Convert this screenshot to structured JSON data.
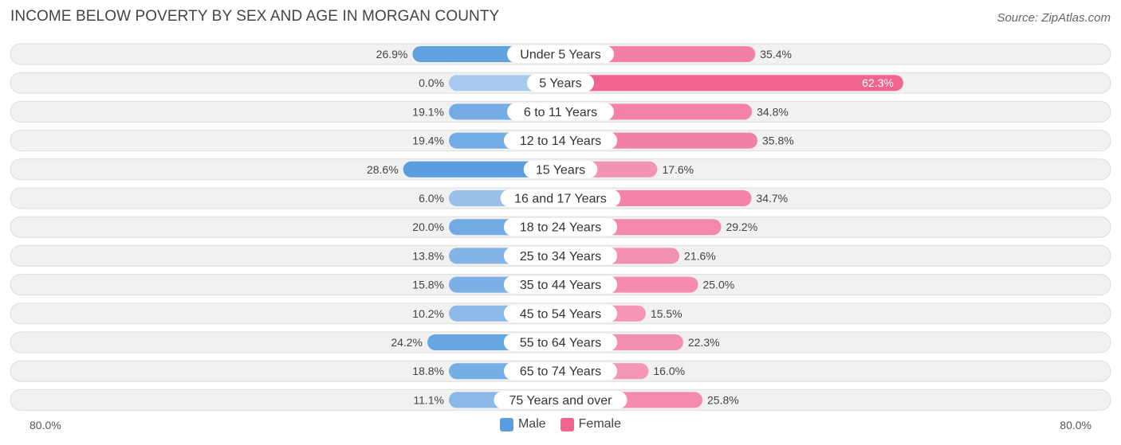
{
  "header": {
    "title": "INCOME BELOW POVERTY BY SEX AND AGE IN MORGAN COUNTY",
    "source": "Source: ZipAtlas.com"
  },
  "colors": {
    "male": "#5b9ee0",
    "male_light": "#a8c9ee",
    "female": "#f0648f",
    "female_light": "#f6a7c2",
    "track": "#f1f1f1",
    "track_border": "#dddddd"
  },
  "chart_data": {
    "type": "bar",
    "orientation": "horizontal-diverging",
    "title": "INCOME BELOW POVERTY BY SEX AND AGE IN MORGAN COUNTY",
    "categories": [
      "Under 5 Years",
      "5 Years",
      "6 to 11 Years",
      "12 to 14 Years",
      "15 Years",
      "16 and 17 Years",
      "18 to 24 Years",
      "25 to 34 Years",
      "35 to 44 Years",
      "45 to 54 Years",
      "55 to 64 Years",
      "65 to 74 Years",
      "75 Years and over"
    ],
    "series": [
      {
        "name": "Male",
        "values": [
          26.9,
          0.0,
          19.1,
          19.4,
          28.6,
          6.0,
          20.0,
          13.8,
          15.8,
          10.2,
          24.2,
          18.8,
          11.1
        ],
        "labels": [
          "26.9%",
          "0.0%",
          "19.1%",
          "19.4%",
          "28.6%",
          "6.0%",
          "20.0%",
          "13.8%",
          "15.8%",
          "10.2%",
          "24.2%",
          "18.8%",
          "11.1%"
        ]
      },
      {
        "name": "Female",
        "values": [
          35.4,
          62.3,
          34.8,
          35.8,
          17.6,
          34.7,
          29.2,
          21.6,
          25.0,
          15.5,
          22.3,
          16.0,
          25.8
        ],
        "labels": [
          "35.4%",
          "62.3%",
          "34.8%",
          "35.8%",
          "17.6%",
          "34.7%",
          "29.2%",
          "21.6%",
          "25.0%",
          "15.5%",
          "22.3%",
          "16.0%",
          "25.8%"
        ]
      }
    ],
    "xlim": [
      -80,
      80
    ],
    "axis_labels": {
      "left": "80.0%",
      "right": "80.0%"
    },
    "legend": [
      "Male",
      "Female"
    ]
  }
}
